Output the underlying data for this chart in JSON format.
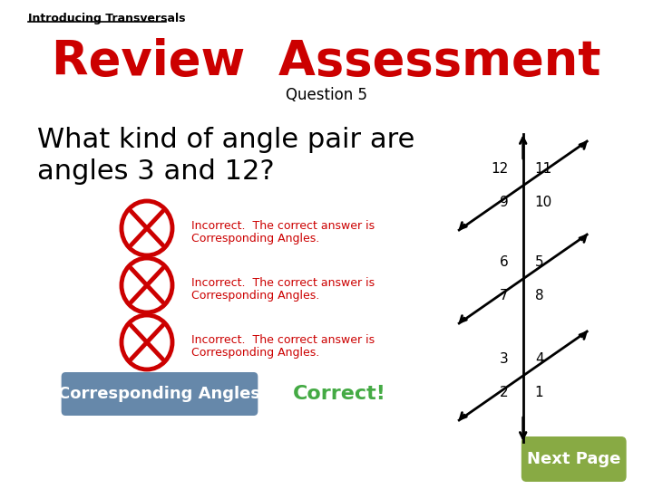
{
  "background_color": "#ffffff",
  "title_intro": "Introducing Transversals",
  "title_main": "Review  Assessment",
  "title_question": "Question 5",
  "question_text_line1": "What kind of angle pair are",
  "question_text_line2": "angles 3 and 12?",
  "incorrect_text_1": "Incorrect.  The correct answer is",
  "incorrect_text_2": "Corresponding Angles.",
  "correct_label": "Corresponding Angles",
  "correct_text": "Correct!",
  "next_button_text": "Next Page",
  "title_main_color": "#cc0000",
  "title_question_color": "#000000",
  "question_color": "#000000",
  "incorrect_color": "#cc0000",
  "correct_label_bg": "#6688aa",
  "correct_label_text_color": "#ffffff",
  "correct_text_color": "#44aa44",
  "next_button_bg": "#88aa44",
  "next_button_text_color": "#ffffff",
  "cross_color": "#cc0000",
  "figsize": [
    7.2,
    5.4
  ],
  "dpi": 100
}
